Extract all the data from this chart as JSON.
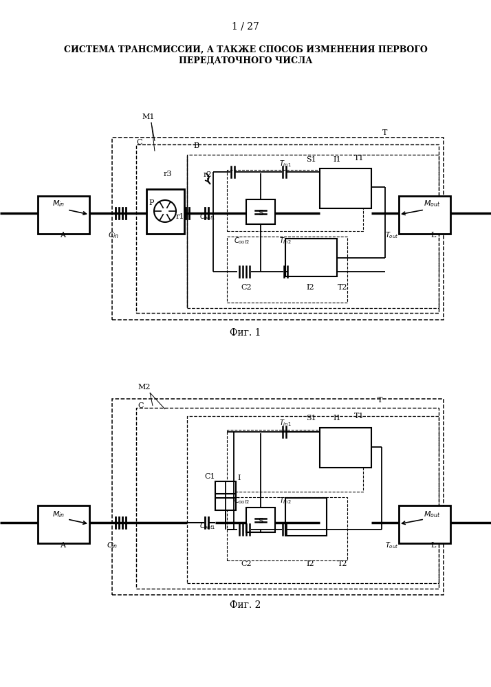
{
  "page_label": "1 / 27",
  "title_line1": "СИСТЕМА ТРАНСМИССИИ, А ТАКЖЕ СПОСОБ ИЗМЕНЕНИЯ ПЕРВОГО",
  "title_line2": "ПЕРЕДАТОЧНОГО ЧИСЛА",
  "fig1_label": "Фиг. 1",
  "fig2_label": "Фиг. 2",
  "bg_color": "#ffffff",
  "text_color": "#000000"
}
